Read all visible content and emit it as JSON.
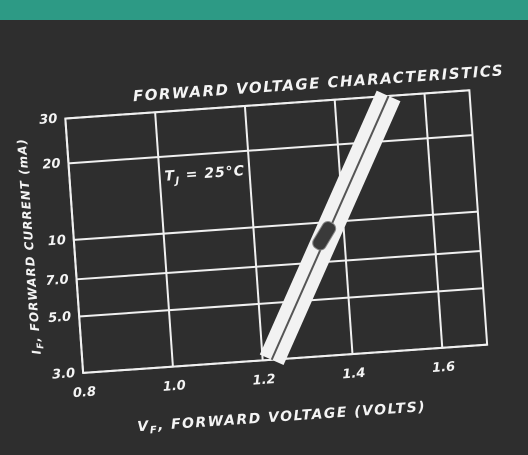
{
  "chart_data": {
    "type": "line",
    "title": "FORWARD VOLTAGE CHARACTERISTICS",
    "x_label": {
      "symbol": "V",
      "sub": "F",
      "text": ", FORWARD VOLTAGE (VOLTS)"
    },
    "y_label": {
      "symbol": "I",
      "sub": "F",
      "text": ", FORWARD CURRENT (mA)"
    },
    "annotation": {
      "symbol": "T",
      "sub": "J",
      "text": " = 25°C"
    },
    "log_y": true,
    "grid": true,
    "xlim": [
      0.8,
      1.7
    ],
    "xticks": [
      0.8,
      {
        "value": 1.0,
        "label": "1.0"
      },
      1.2,
      1.4,
      1.6
    ],
    "ylim": [
      3,
      30
    ],
    "yticks": [
      {
        "value": 3,
        "label": "3.0"
      },
      {
        "value": 5,
        "label": "5.0"
      },
      {
        "value": 7,
        "label": "7.0"
      },
      10,
      20,
      30
    ],
    "series": [
      {
        "color": "#f2f2f2",
        "x": [
          1.22,
          1.52
        ],
        "values": [
          3,
          30
        ]
      }
    ]
  }
}
